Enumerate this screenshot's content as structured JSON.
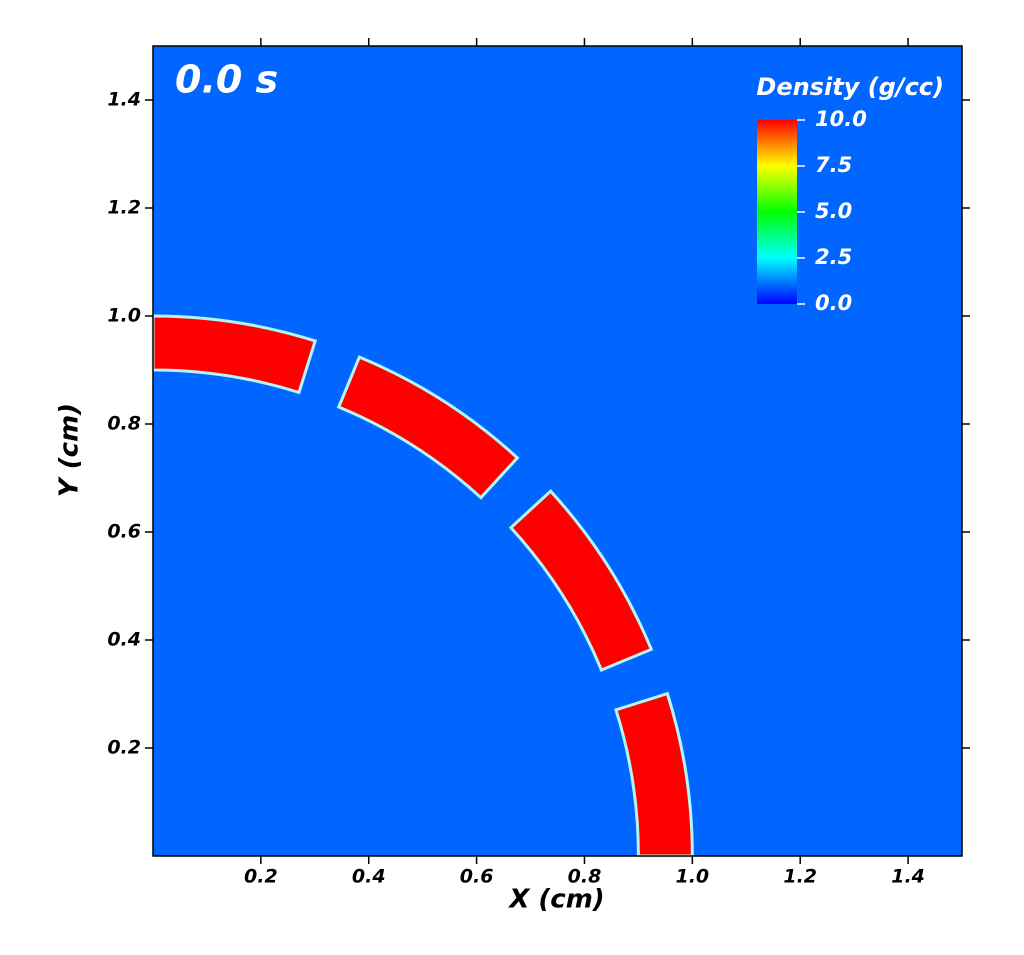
{
  "chart_data": {
    "type": "field",
    "title": "0.0 s",
    "x_label": "X (cm)",
    "y_label": "Y (cm)",
    "xlim": [
      0,
      1.5
    ],
    "ylim": [
      0,
      1.5
    ],
    "xticks": [
      0.2,
      0.4,
      0.6,
      0.8,
      {
        "value": 1,
        "label": "1.0"
      },
      1.2,
      1.4
    ],
    "yticks": [
      0.2,
      0.4,
      0.6,
      0.8,
      {
        "value": 1,
        "label": "1.0"
      },
      1.2,
      1.4
    ],
    "background_color": "#0066ff",
    "ring": {
      "inner_radius": 0.9,
      "outer_radius": 1.0,
      "color": "#ff0000",
      "edge_color": "#b4f5f0",
      "segments": [
        [
          72.5,
          90
        ],
        [
          47.5,
          67.5
        ],
        [
          22.5,
          42.5
        ],
        [
          0,
          17.5
        ]
      ]
    },
    "colorbar": {
      "title": "Density (g/cc)",
      "clim": [
        0,
        10
      ],
      "colors": [
        "#0000ff",
        "#00ffff",
        "#00ff00",
        "#ffff00",
        "#ff0000"
      ],
      "ticks": [
        {
          "value": 0,
          "label": "0.0"
        },
        2.5,
        {
          "value": 5,
          "label": "5.0"
        },
        7.5,
        {
          "value": 10,
          "label": "10.0"
        }
      ]
    }
  }
}
